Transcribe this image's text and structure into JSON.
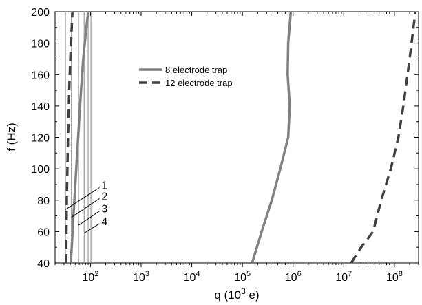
{
  "chart_data": {
    "type": "line",
    "xlabel_base": "q (10",
    "xlabel_exp": "3",
    "xlabel_end": " e)",
    "ylabel": "f (Hz)",
    "xscale": "log",
    "xlim": [
      20,
      300000000
    ],
    "ylim": [
      40,
      200
    ],
    "x_ticks": [
      {
        "value": 100,
        "base": "10",
        "exp": "2"
      },
      {
        "value": 1000,
        "base": "10",
        "exp": "3"
      },
      {
        "value": 10000,
        "base": "10",
        "exp": "4"
      },
      {
        "value": 100000,
        "base": "10",
        "exp": "5"
      },
      {
        "value": 1000000,
        "base": "10",
        "exp": "6"
      },
      {
        "value": 10000000,
        "base": "10",
        "exp": "7"
      },
      {
        "value": 100000000,
        "base": "10",
        "exp": "8"
      }
    ],
    "y_ticks": [
      "40",
      "60",
      "80",
      "100",
      "120",
      "140",
      "160",
      "180",
      "200"
    ],
    "legend_position": "top-center",
    "series": [
      {
        "name": "8 electrode trap",
        "style": "solid",
        "color": "#808080",
        "curves": [
          {
            "x": [
              41,
              48,
              57,
              65,
              72,
              80,
              90
            ],
            "y": [
              40,
              80,
              120,
              150,
              170,
              185,
              200
            ]
          },
          {
            "x": [
              155000,
              240000,
              380000,
              560000,
              800000,
              860000,
              780000,
              800000,
              900000
            ],
            "y": [
              40,
              60,
              80,
              100,
              120,
              140,
              160,
              180,
              200
            ]
          }
        ]
      },
      {
        "name": "12 electrode trap",
        "style": "dashed",
        "color": "#404040",
        "curves": [
          {
            "x": [
              33,
              34,
              36,
              38,
              40,
              42,
              44
            ],
            "y": [
              40,
              80,
              120,
              150,
              170,
              185,
              200
            ]
          },
          {
            "x": [
              14000000,
              22000000,
              38000000,
              55000000,
              85000000,
              120000000,
              150000000,
              200000000,
              260000000
            ],
            "y": [
              40,
              50,
              60,
              80,
              100,
              120,
              140,
              170,
              200
            ]
          }
        ]
      }
    ],
    "vertical_lines": [
      32,
      42,
      58,
      75,
      90,
      102
    ],
    "vertical_line_color": "#9a9a9a",
    "annotations": [
      {
        "label": "1",
        "line_from": [
          32,
          74
        ],
        "line_to": [
          150,
          88
        ]
      },
      {
        "label": "2",
        "line_from": [
          42,
          69
        ],
        "line_to": [
          150,
          81
        ]
      },
      {
        "label": "3",
        "line_from": [
          58,
          64
        ],
        "line_to": [
          150,
          73
        ]
      },
      {
        "label": "4",
        "line_from": [
          75,
          59
        ],
        "line_to": [
          150,
          65
        ]
      }
    ]
  }
}
